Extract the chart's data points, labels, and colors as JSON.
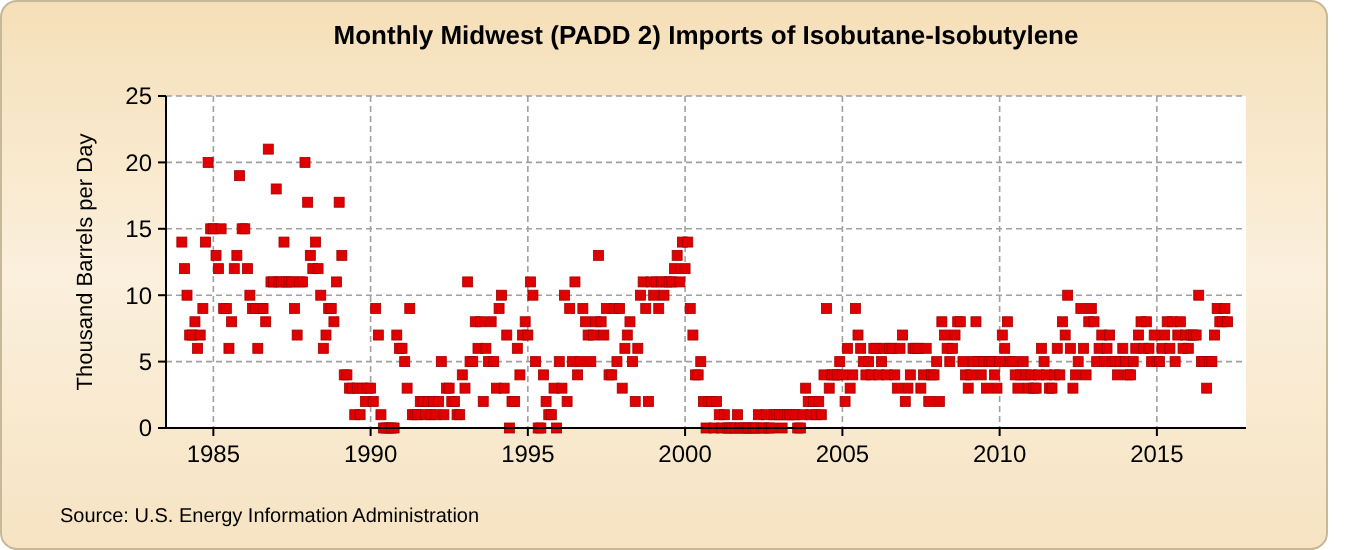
{
  "chart_data": {
    "type": "scatter",
    "title": "Monthly Midwest (PADD 2) Imports of Isobutane-Isobutylene",
    "ylabel": "Thousand Barrels per Day",
    "annotations": [
      "Source: U.S. Energy Information Administration"
    ],
    "x": [
      "1984-01",
      "1984-02",
      "1984-03",
      "1984-04",
      "1984-05",
      "1984-06",
      "1984-07",
      "1984-08",
      "1984-09",
      "1984-10",
      "1984-11",
      "1984-12",
      "1985-01",
      "1985-02",
      "1985-03",
      "1985-04",
      "1985-05",
      "1985-06",
      "1985-07",
      "1985-08",
      "1985-09",
      "1985-10",
      "1985-11",
      "1985-12",
      "1986-01",
      "1986-02",
      "1986-03",
      "1986-04",
      "1986-05",
      "1986-06",
      "1986-07",
      "1986-08",
      "1986-09",
      "1986-10",
      "1986-11",
      "1986-12",
      "1987-01",
      "1987-02",
      "1987-03",
      "1987-04",
      "1987-05",
      "1987-06",
      "1987-07",
      "1987-08",
      "1987-09",
      "1987-10",
      "1987-11",
      "1987-12",
      "1988-01",
      "1988-02",
      "1988-03",
      "1988-04",
      "1988-05",
      "1988-06",
      "1988-07",
      "1988-08",
      "1988-09",
      "1988-10",
      "1988-11",
      "1988-12",
      "1989-01",
      "1989-02",
      "1989-03",
      "1989-04",
      "1989-05",
      "1989-06",
      "1989-07",
      "1989-08",
      "1989-09",
      "1989-10",
      "1989-11",
      "1989-12",
      "1990-01",
      "1990-02",
      "1990-03",
      "1990-04",
      "1990-05",
      "1990-06",
      "1990-07",
      "1990-08",
      "1990-09",
      "1990-10",
      "1990-11",
      "1990-12",
      "1991-01",
      "1991-02",
      "1991-03",
      "1991-04",
      "1991-05",
      "1991-06",
      "1991-07",
      "1991-08",
      "1991-09",
      "1991-10",
      "1991-11",
      "1991-12",
      "1992-01",
      "1992-02",
      "1992-03",
      "1992-04",
      "1992-05",
      "1992-06",
      "1992-07",
      "1992-08",
      "1992-09",
      "1992-10",
      "1992-11",
      "1992-12",
      "1993-01",
      "1993-02",
      "1993-03",
      "1993-04",
      "1993-05",
      "1993-06",
      "1993-07",
      "1993-08",
      "1993-09",
      "1993-10",
      "1993-11",
      "1993-12",
      "1994-01",
      "1994-02",
      "1994-03",
      "1994-04",
      "1994-05",
      "1994-06",
      "1994-07",
      "1994-08",
      "1994-09",
      "1994-10",
      "1994-11",
      "1994-12",
      "1995-01",
      "1995-02",
      "1995-03",
      "1995-04",
      "1995-05",
      "1995-06",
      "1995-07",
      "1995-08",
      "1995-09",
      "1995-10",
      "1995-11",
      "1995-12",
      "1996-01",
      "1996-02",
      "1996-03",
      "1996-04",
      "1996-05",
      "1996-06",
      "1996-07",
      "1996-08",
      "1996-09",
      "1996-10",
      "1996-11",
      "1996-12",
      "1997-01",
      "1997-02",
      "1997-03",
      "1997-04",
      "1997-05",
      "1997-06",
      "1997-07",
      "1997-08",
      "1997-09",
      "1997-10",
      "1997-11",
      "1997-12",
      "1998-01",
      "1998-02",
      "1998-03",
      "1998-04",
      "1998-05",
      "1998-06",
      "1998-07",
      "1998-08",
      "1998-09",
      "1998-10",
      "1998-11",
      "1998-12",
      "1999-01",
      "1999-02",
      "1999-03",
      "1999-04",
      "1999-05",
      "1999-06",
      "1999-07",
      "1999-08",
      "1999-09",
      "1999-10",
      "1999-11",
      "1999-12",
      "2000-01",
      "2000-02",
      "2000-03",
      "2000-04",
      "2000-05",
      "2000-06",
      "2000-07",
      "2000-08",
      "2000-09",
      "2000-10",
      "2000-11",
      "2000-12",
      "2001-01",
      "2001-02",
      "2001-03",
      "2001-04",
      "2001-05",
      "2001-06",
      "2001-07",
      "2001-08",
      "2001-09",
      "2001-10",
      "2001-11",
      "2001-12",
      "2002-01",
      "2002-02",
      "2002-03",
      "2002-04",
      "2002-05",
      "2002-06",
      "2002-07",
      "2002-08",
      "2002-09",
      "2002-10",
      "2002-11",
      "2002-12",
      "2003-01",
      "2003-02",
      "2003-03",
      "2003-04",
      "2003-05",
      "2003-06",
      "2003-07",
      "2003-08",
      "2003-09",
      "2003-10",
      "2003-11",
      "2003-12",
      "2004-01",
      "2004-02",
      "2004-03",
      "2004-04",
      "2004-05",
      "2004-06",
      "2004-07",
      "2004-08",
      "2004-09",
      "2004-10",
      "2004-11",
      "2004-12",
      "2005-01",
      "2005-02",
      "2005-03",
      "2005-04",
      "2005-05",
      "2005-06",
      "2005-07",
      "2005-08",
      "2005-09",
      "2005-10",
      "2005-11",
      "2005-12",
      "2006-01",
      "2006-02",
      "2006-03",
      "2006-04",
      "2006-05",
      "2006-06",
      "2006-07",
      "2006-08",
      "2006-09",
      "2006-10",
      "2006-11",
      "2006-12",
      "2007-01",
      "2007-02",
      "2007-03",
      "2007-04",
      "2007-05",
      "2007-06",
      "2007-07",
      "2007-08",
      "2007-09",
      "2007-10",
      "2007-11",
      "2007-12",
      "2008-01",
      "2008-02",
      "2008-03",
      "2008-04",
      "2008-05",
      "2008-06",
      "2008-07",
      "2008-08",
      "2008-09",
      "2008-10",
      "2008-11",
      "2008-12",
      "2009-01",
      "2009-02",
      "2009-03",
      "2009-04",
      "2009-05",
      "2009-06",
      "2009-07",
      "2009-08",
      "2009-09",
      "2009-10",
      "2009-11",
      "2009-12",
      "2010-01",
      "2010-02",
      "2010-03",
      "2010-04",
      "2010-05",
      "2010-06",
      "2010-07",
      "2010-08",
      "2010-09",
      "2010-10",
      "2010-11",
      "2010-12",
      "2011-01",
      "2011-02",
      "2011-03",
      "2011-04",
      "2011-05",
      "2011-06",
      "2011-07",
      "2011-08",
      "2011-09",
      "2011-10",
      "2011-11",
      "2011-12",
      "2012-01",
      "2012-02",
      "2012-03",
      "2012-04",
      "2012-05",
      "2012-06",
      "2012-07",
      "2012-08",
      "2012-09",
      "2012-10",
      "2012-11",
      "2012-12",
      "2013-01",
      "2013-02",
      "2013-03",
      "2013-04",
      "2013-05",
      "2013-06",
      "2013-07",
      "2013-08",
      "2013-09",
      "2013-10",
      "2013-11",
      "2013-12",
      "2014-01",
      "2014-02",
      "2014-03",
      "2014-04",
      "2014-05",
      "2014-06",
      "2014-07",
      "2014-08",
      "2014-09",
      "2014-10",
      "2014-11",
      "2014-12",
      "2015-01",
      "2015-02",
      "2015-03",
      "2015-04",
      "2015-05",
      "2015-06",
      "2015-07",
      "2015-08",
      "2015-09",
      "2015-10",
      "2015-11",
      "2015-12",
      "2016-01",
      "2016-02",
      "2016-03",
      "2016-04",
      "2016-05",
      "2016-06",
      "2016-07",
      "2016-08",
      "2016-09",
      "2016-10",
      "2016-11",
      "2016-12",
      "2017-01",
      "2017-02",
      "2017-03",
      "2017-04"
    ],
    "series": [
      {
        "color": "#e00000",
        "values": [
          14,
          12,
          10,
          7,
          7,
          8,
          6,
          7,
          9,
          14,
          20,
          15,
          15,
          13,
          12,
          15,
          9,
          9,
          6,
          8,
          12,
          13,
          19,
          15,
          15,
          12,
          10,
          9,
          9,
          6,
          9,
          9,
          8,
          21,
          11,
          11,
          18,
          11,
          11,
          14,
          11,
          11,
          11,
          9,
          7,
          11,
          11,
          20,
          17,
          13,
          12,
          14,
          12,
          10,
          6,
          7,
          9,
          9,
          8,
          11,
          17,
          13,
          4,
          4,
          3,
          3,
          1,
          3,
          1,
          3,
          2,
          3,
          3,
          2,
          9,
          7,
          1,
          0,
          0,
          0,
          0,
          0,
          7,
          6,
          6,
          5,
          3,
          9,
          1,
          1,
          1,
          2,
          2,
          1,
          2,
          1,
          2,
          1,
          2,
          5,
          1,
          3,
          3,
          2,
          2,
          1,
          1,
          4,
          3,
          11,
          5,
          5,
          8,
          6,
          8,
          2,
          6,
          5,
          8,
          5,
          3,
          9,
          10,
          3,
          7,
          0,
          2,
          2,
          6,
          4,
          7,
          8,
          7,
          11,
          10,
          5,
          0,
          0,
          4,
          2,
          1,
          1,
          3,
          0,
          5,
          3,
          10,
          2,
          9,
          5,
          11,
          4,
          5,
          9,
          8,
          7,
          5,
          7,
          8,
          13,
          8,
          7,
          9,
          4,
          4,
          9,
          5,
          9,
          3,
          6,
          7,
          8,
          5,
          2,
          6,
          10,
          11,
          9,
          2,
          11,
          10,
          11,
          9,
          11,
          10,
          11,
          11,
          11,
          12,
          13,
          11,
          14,
          12,
          14,
          9,
          7,
          4,
          4,
          5,
          2,
          0,
          2,
          2,
          0,
          2,
          1,
          0,
          1,
          0,
          0,
          0,
          0,
          1,
          0,
          0,
          0,
          0,
          0,
          0,
          0,
          1,
          0,
          0,
          1,
          0,
          0,
          1,
          1,
          1,
          0,
          1,
          1,
          1,
          1,
          1,
          0,
          0,
          1,
          3,
          2,
          1,
          2,
          1,
          2,
          1,
          4,
          9,
          3,
          4,
          4,
          4,
          5,
          4,
          2,
          6,
          3,
          4,
          9,
          7,
          6,
          5,
          4,
          5,
          4,
          6,
          6,
          4,
          5,
          6,
          4,
          6,
          6,
          4,
          3,
          6,
          7,
          2,
          3,
          4,
          6,
          6,
          6,
          3,
          4,
          6,
          2,
          4,
          4,
          5,
          2,
          8,
          7,
          6,
          5,
          6,
          7,
          8,
          8,
          5,
          4,
          3,
          4,
          5,
          8,
          5,
          4,
          5,
          3,
          5,
          5,
          4,
          3,
          5,
          7,
          6,
          8,
          5,
          5,
          4,
          3,
          4,
          5,
          4,
          3,
          4,
          3,
          3,
          4,
          6,
          5,
          4,
          3,
          3,
          4,
          6,
          4,
          8,
          7,
          10,
          6,
          3,
          4,
          5,
          9,
          6,
          4,
          8,
          9,
          8,
          5,
          6,
          7,
          5,
          6,
          7,
          5,
          5,
          4,
          5,
          6,
          5,
          4,
          4,
          5,
          6,
          7,
          8,
          6,
          8,
          6,
          5,
          7,
          5,
          5,
          6,
          7,
          8,
          6,
          8,
          5,
          7,
          8,
          6,
          7,
          6,
          7,
          7,
          7,
          10,
          5,
          5,
          3,
          5,
          5,
          7,
          9,
          8,
          8,
          9,
          8
        ]
      }
    ],
    "xlim": [
      "1983-07",
      "2017-11"
    ],
    "xticks": [
      {
        "value": "1985",
        "label": "1985"
      },
      {
        "value": "1990",
        "label": "1990"
      },
      {
        "value": "1995",
        "label": "1995"
      },
      {
        "value": "2000",
        "label": "2000"
      },
      {
        "value": "2005",
        "label": "2005"
      },
      {
        "value": "2010",
        "label": "2010"
      },
      {
        "value": "2015",
        "label": "2015"
      }
    ],
    "ylim": [
      0,
      25
    ],
    "yticks": [
      0,
      5,
      10,
      15,
      20,
      25
    ],
    "grid": true,
    "marker": "square"
  }
}
